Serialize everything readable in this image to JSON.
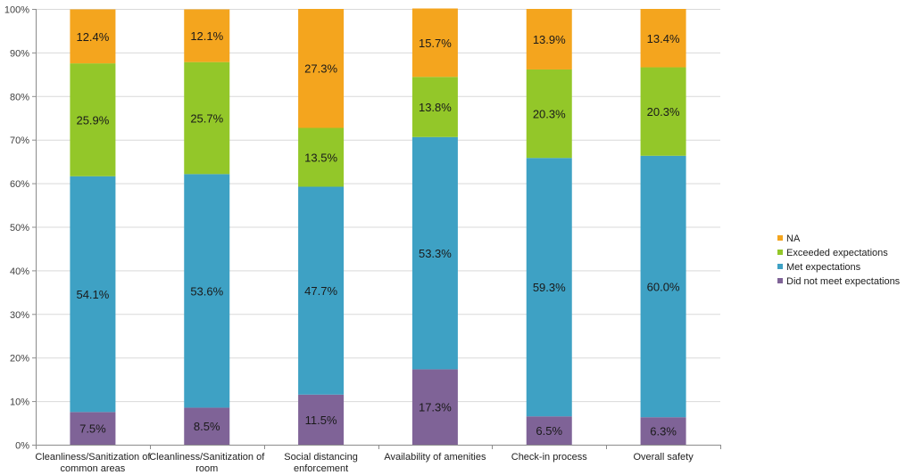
{
  "chart_data": {
    "type": "bar",
    "stacked": true,
    "percent_stacked": true,
    "title": "",
    "xlabel": "",
    "ylabel": "",
    "ylim": [
      0,
      100
    ],
    "y_ticks": [
      "0%",
      "10%",
      "20%",
      "30%",
      "40%",
      "50%",
      "60%",
      "70%",
      "80%",
      "90%",
      "100%"
    ],
    "grid": true,
    "legend_position": "right",
    "categories": [
      [
        "Cleanliness/Sanitization of",
        "common areas"
      ],
      [
        "Cleanliness/Sanitization of",
        "room"
      ],
      [
        "Social distancing",
        "enforcement"
      ],
      [
        "Availability of amenities"
      ],
      [
        "Check-in process"
      ],
      [
        "Overall safety"
      ]
    ],
    "series": [
      {
        "name": "Did not meet expectations",
        "color": "#7f6397",
        "values": [
          7.5,
          8.5,
          11.5,
          17.3,
          6.5,
          6.3
        ],
        "labels": [
          "7.5%",
          "8.5%",
          "11.5%",
          "17.3%",
          "6.5%",
          "6.3%"
        ]
      },
      {
        "name": "Met expectations",
        "color": "#3ea1c4",
        "values": [
          54.1,
          53.6,
          47.7,
          53.3,
          59.3,
          60.0
        ],
        "labels": [
          "54.1%",
          "53.6%",
          "47.7%",
          "53.3%",
          "59.3%",
          "60.0%"
        ]
      },
      {
        "name": "Exceeded expectations",
        "color": "#93c729",
        "values": [
          25.9,
          25.7,
          13.5,
          13.8,
          20.3,
          20.3
        ],
        "labels": [
          "25.9%",
          "25.7%",
          "13.5%",
          "13.8%",
          "20.3%",
          "20.3%"
        ]
      },
      {
        "name": "NA",
        "color": "#f4a51e",
        "values": [
          12.4,
          12.1,
          27.3,
          15.7,
          13.9,
          13.4
        ],
        "labels": [
          "12.4%",
          "12.1%",
          "27.3%",
          "15.7%",
          "13.9%",
          "13.4%"
        ]
      }
    ],
    "legend_order": [
      "NA",
      "Exceeded expectations",
      "Met expectations",
      "Did not meet expectations"
    ]
  }
}
